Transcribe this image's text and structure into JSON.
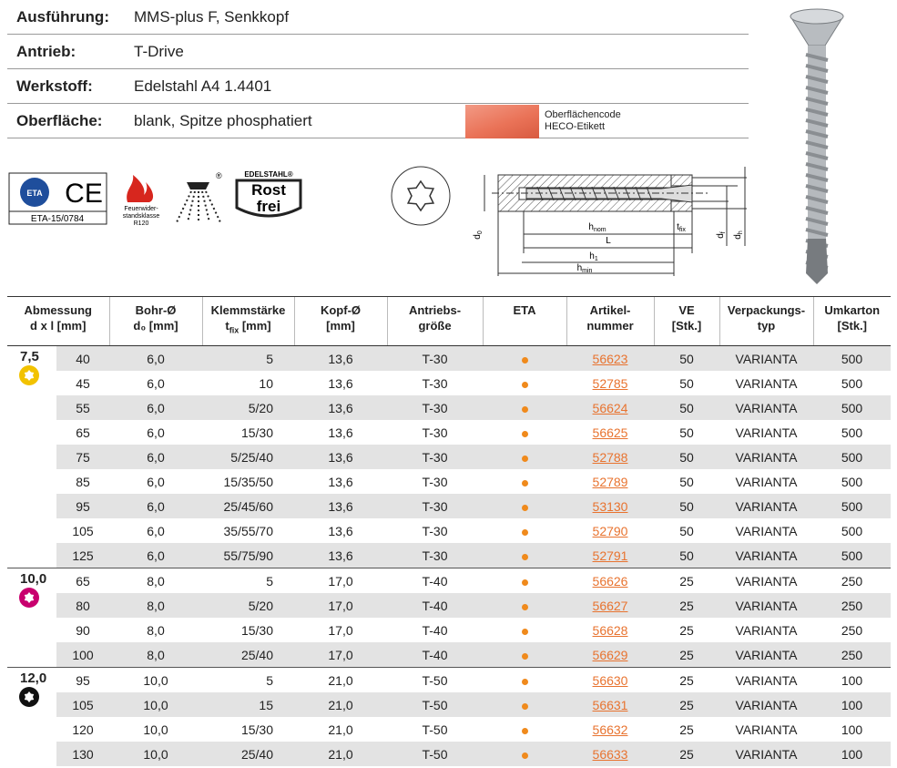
{
  "specs": [
    {
      "label": "Ausführung:",
      "value": "MMS-plus F, Senkkopf"
    },
    {
      "label": "Antrieb:",
      "value": "T-Drive"
    },
    {
      "label": "Werkstoff:",
      "value": "Edelstahl A4 1.4401"
    },
    {
      "label": "Oberfläche:",
      "value": "blank, Spitze phosphatiert"
    }
  ],
  "surface_code": {
    "color": "#ea7358",
    "lines": [
      "Oberflächencode",
      "HECO-Etikett"
    ]
  },
  "icons": {
    "eta_logo": "ETA",
    "ce": "CE",
    "eta_number": "ETA-15/0784",
    "fire_class": [
      "Feuerwider-",
      "standsklasse",
      "R120"
    ],
    "registered": "®",
    "rostfrei": [
      "EDELSTAHL®",
      "Rost",
      "frei"
    ]
  },
  "drawing_labels": [
    {
      "text": "d",
      "sub": "0"
    },
    {
      "text": "h",
      "sub": "nom"
    },
    {
      "text": "t",
      "sub": "fix"
    },
    {
      "text": "L"
    },
    {
      "text": "h",
      "sub": "1"
    },
    {
      "text": "h",
      "sub": "min"
    },
    {
      "text": "d",
      "sub": "f"
    },
    {
      "text": "d",
      "sub": "h"
    }
  ],
  "table": {
    "headers": [
      {
        "lines": [
          "Abmessung",
          "d x l [mm]"
        ]
      },
      {
        "lines": [
          "Bohr-Ø",
          "d₀ [mm]"
        ]
      },
      {
        "lines": [
          "Klemmstärke",
          {
            "text": "t",
            "sub": "fix",
            "tail": " [mm]"
          }
        ]
      },
      {
        "lines": [
          "Kopf-Ø",
          "[mm]"
        ]
      },
      {
        "lines": [
          "Antriebs-",
          "größe"
        ]
      },
      {
        "lines": [
          "ETA"
        ]
      },
      {
        "lines": [
          "Artikel-",
          "nummer"
        ]
      },
      {
        "lines": [
          "VE",
          "[Stk.]"
        ]
      },
      {
        "lines": [
          "Verpackungs-",
          "typ"
        ]
      },
      {
        "lines": [
          "Umkarton",
          "[Stk.]"
        ]
      }
    ],
    "groups": [
      {
        "label": "7,5",
        "icon_color": "#f2c200",
        "rows": [
          [
            "40",
            "6,0",
            "5",
            "13,6",
            "T-30",
            "56623",
            "50",
            "VARIANTA",
            "500"
          ],
          [
            "45",
            "6,0",
            "10",
            "13,6",
            "T-30",
            "52785",
            "50",
            "VARIANTA",
            "500"
          ],
          [
            "55",
            "6,0",
            "5/20",
            "13,6",
            "T-30",
            "56624",
            "50",
            "VARIANTA",
            "500"
          ],
          [
            "65",
            "6,0",
            "15/30",
            "13,6",
            "T-30",
            "56625",
            "50",
            "VARIANTA",
            "500"
          ],
          [
            "75",
            "6,0",
            "5/25/40",
            "13,6",
            "T-30",
            "52788",
            "50",
            "VARIANTA",
            "500"
          ],
          [
            "85",
            "6,0",
            "15/35/50",
            "13,6",
            "T-30",
            "52789",
            "50",
            "VARIANTA",
            "500"
          ],
          [
            "95",
            "6,0",
            "25/45/60",
            "13,6",
            "T-30",
            "53130",
            "50",
            "VARIANTA",
            "500"
          ],
          [
            "105",
            "6,0",
            "35/55/70",
            "13,6",
            "T-30",
            "52790",
            "50",
            "VARIANTA",
            "500"
          ],
          [
            "125",
            "6,0",
            "55/75/90",
            "13,6",
            "T-30",
            "52791",
            "50",
            "VARIANTA",
            "500"
          ]
        ]
      },
      {
        "label": "10,0",
        "icon_color": "#c8006e",
        "rows": [
          [
            "65",
            "8,0",
            "5",
            "17,0",
            "T-40",
            "56626",
            "25",
            "VARIANTA",
            "250"
          ],
          [
            "80",
            "8,0",
            "5/20",
            "17,0",
            "T-40",
            "56627",
            "25",
            "VARIANTA",
            "250"
          ],
          [
            "90",
            "8,0",
            "15/30",
            "17,0",
            "T-40",
            "56628",
            "25",
            "VARIANTA",
            "250"
          ],
          [
            "100",
            "8,0",
            "25/40",
            "17,0",
            "T-40",
            "56629",
            "25",
            "VARIANTA",
            "250"
          ]
        ]
      },
      {
        "label": "12,0",
        "icon_color": "#111111",
        "rows": [
          [
            "95",
            "10,0",
            "5",
            "21,0",
            "T-50",
            "56630",
            "25",
            "VARIANTA",
            "100"
          ],
          [
            "105",
            "10,0",
            "15",
            "21,0",
            "T-50",
            "56631",
            "25",
            "VARIANTA",
            "100"
          ],
          [
            "120",
            "10,0",
            "15/30",
            "21,0",
            "T-50",
            "56632",
            "25",
            "VARIANTA",
            "100"
          ],
          [
            "130",
            "10,0",
            "25/40",
            "21,0",
            "T-50",
            "56633",
            "25",
            "VARIANTA",
            "100"
          ]
        ]
      }
    ]
  }
}
